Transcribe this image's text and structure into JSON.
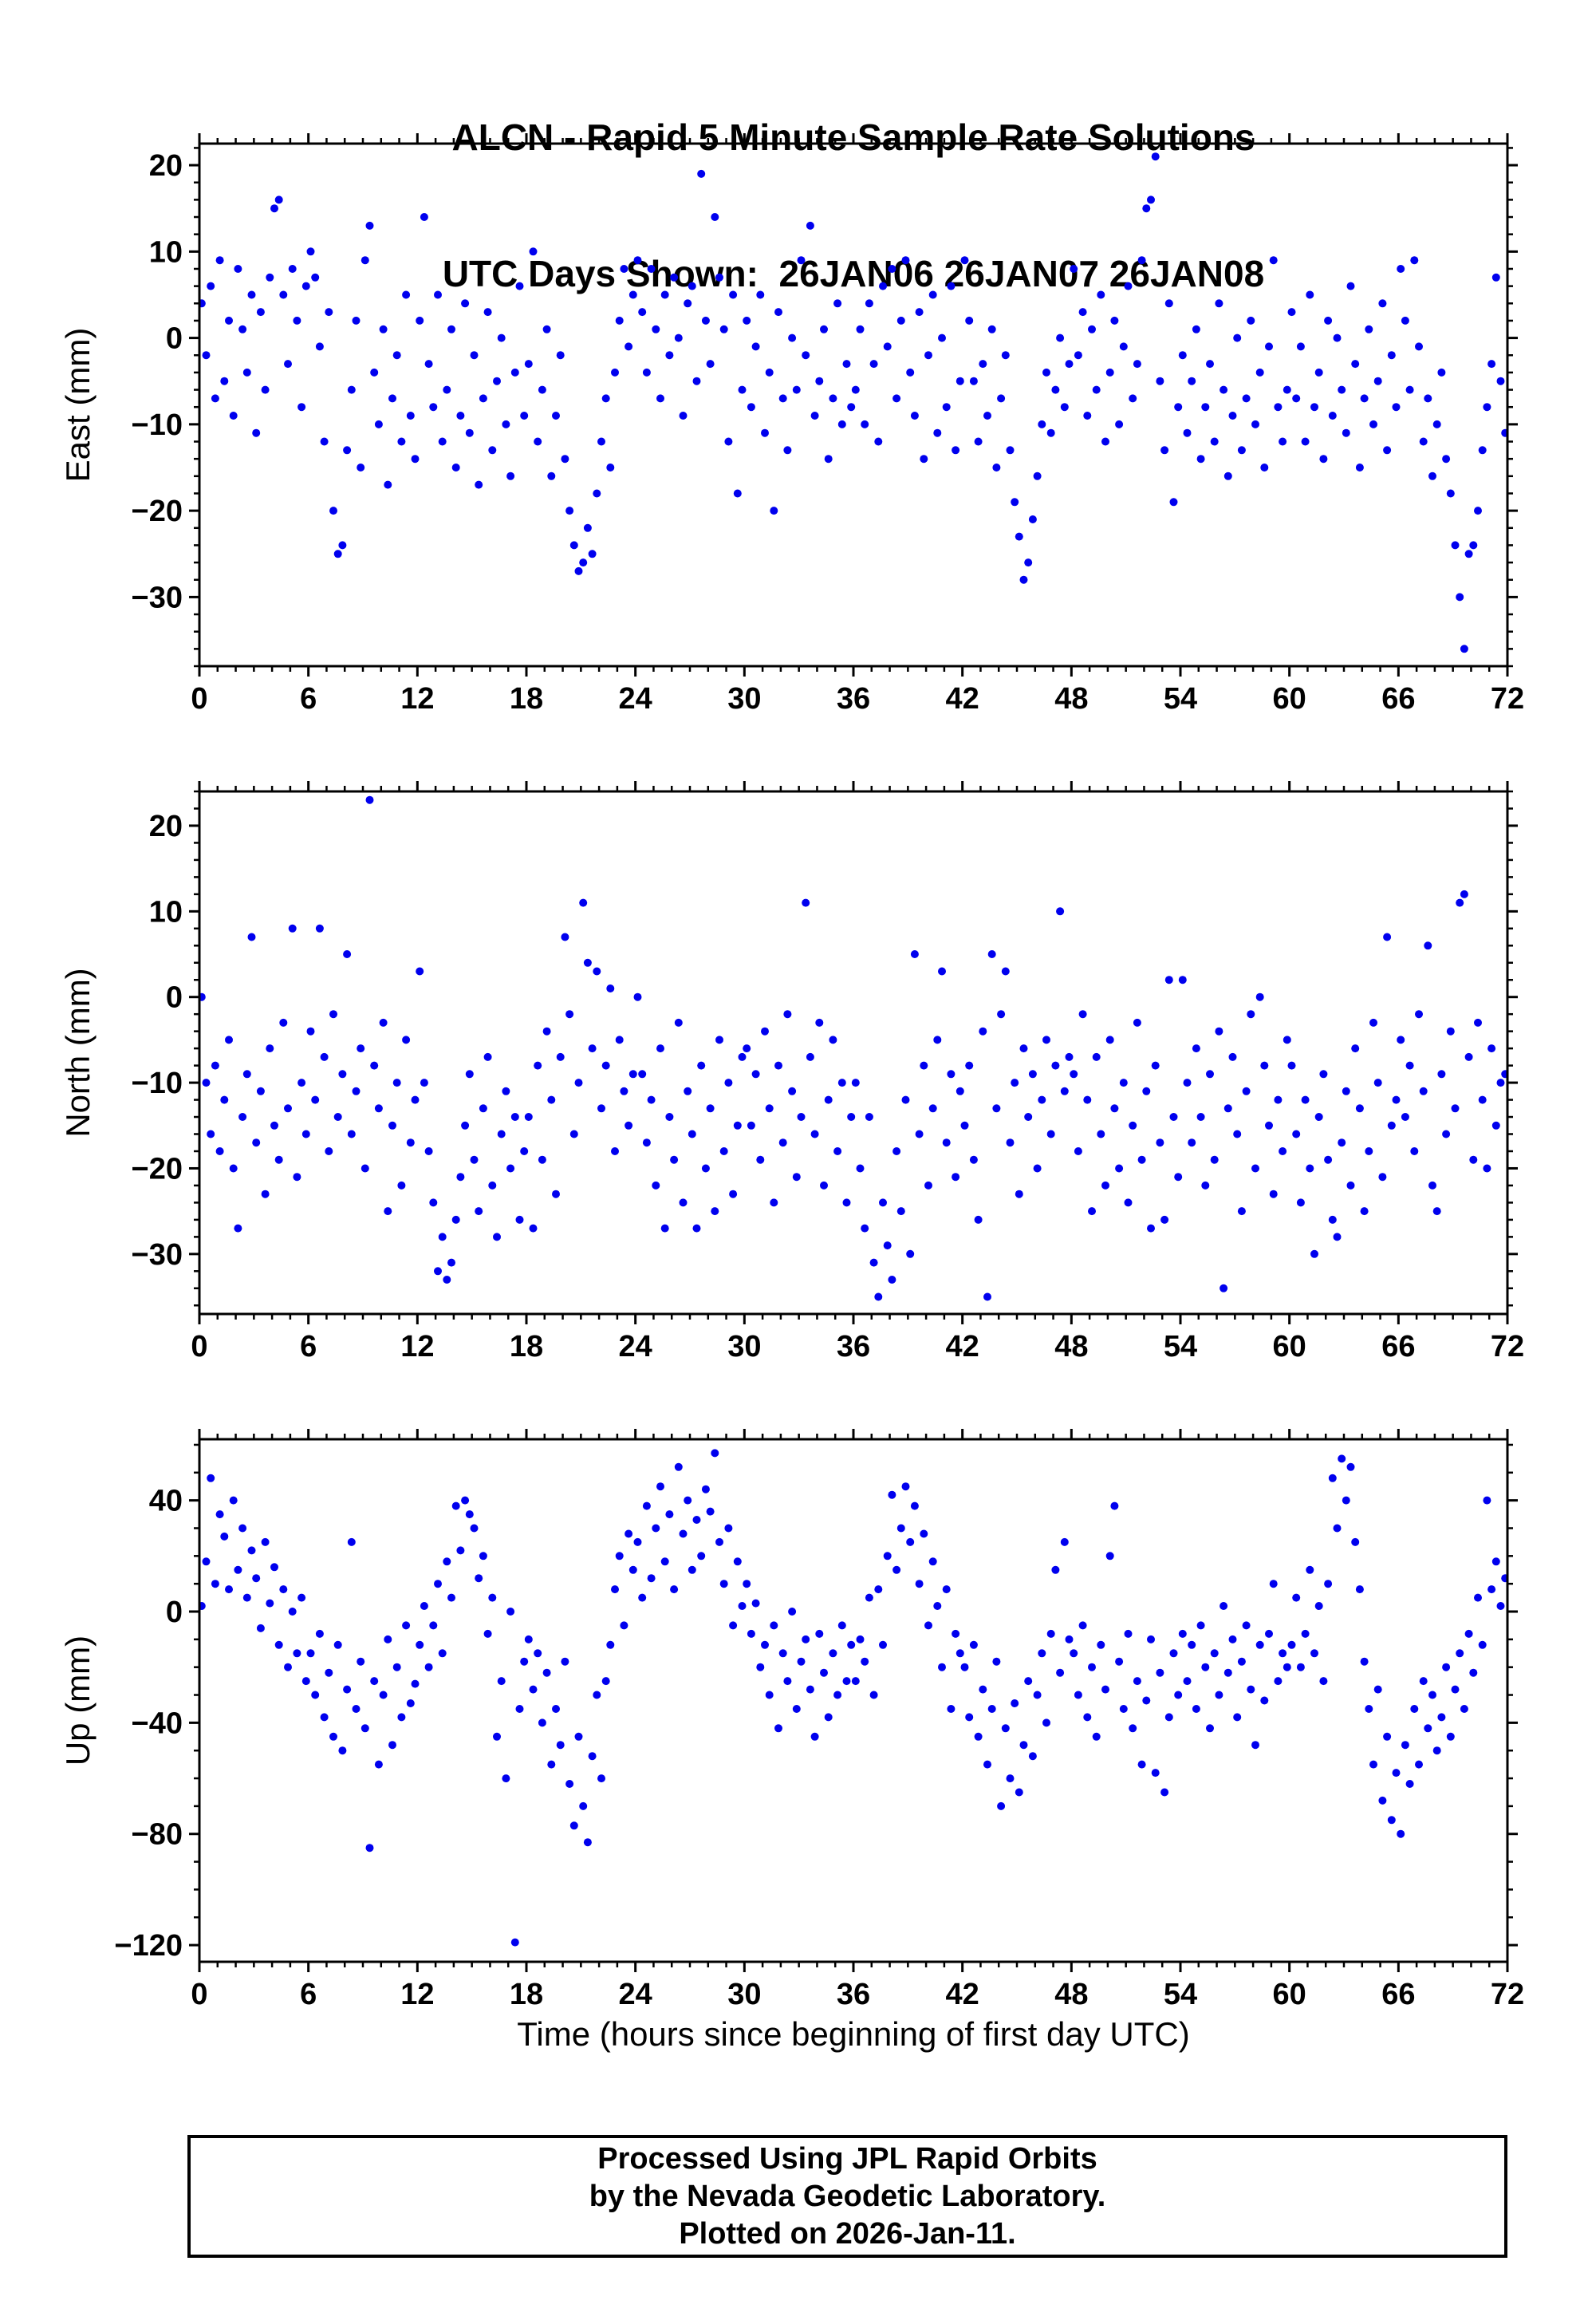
{
  "title": {
    "line1": "ALCN - Rapid 5 Minute Sample Rate Solutions",
    "line2": "UTC Days Shown:  26JAN06 26JAN07 26JAN08"
  },
  "x_axis_title": "Time (hours since beginning of first day UTC)",
  "footer": {
    "line1": "Processed Using JPL Rapid Orbits",
    "line2": "by the Nevada Geodetic Laboratory.",
    "line3": "Plotted on 2026-Jan-11."
  },
  "style": {
    "point_color": "#0000ee",
    "frame_color": "#000000",
    "background": "#ffffff"
  },
  "chart_data": [
    {
      "type": "scatter",
      "name": "east",
      "ylabel": "East (mm)",
      "ylim": [
        -38,
        22.5
      ],
      "yticks": [
        -30,
        -20,
        -10,
        0,
        10,
        20
      ],
      "y_minor_step": 2,
      "xlim": [
        0,
        72
      ],
      "xticks": [
        0,
        6,
        12,
        18,
        24,
        30,
        36,
        42,
        48,
        54,
        60,
        66,
        72
      ],
      "x_minor_step": 1,
      "x_start": 0.125,
      "x_step": 0.25,
      "y": [
        4,
        -2,
        6,
        -7,
        9,
        -5,
        2,
        -9,
        8,
        1,
        -4,
        5,
        -11,
        3,
        -6,
        7,
        15,
        16,
        5,
        -3,
        8,
        2,
        -8,
        6,
        10,
        7,
        -1,
        -12,
        3,
        -20,
        -25,
        -24,
        -13,
        -6,
        2,
        -15,
        9,
        13,
        -4,
        -10,
        1,
        -17,
        -7,
        -2,
        -12,
        5,
        -9,
        -14,
        2,
        14,
        -3,
        -8,
        5,
        -12,
        -6,
        1,
        -15,
        -9,
        4,
        -11,
        -2,
        -17,
        -7,
        3,
        -13,
        -5,
        0,
        -10,
        -16,
        -4,
        6,
        -9,
        -3,
        10,
        -12,
        -6,
        1,
        -16,
        -9,
        -2,
        -14,
        -20,
        -24,
        -27,
        -26,
        -22,
        -25,
        -18,
        -12,
        -7,
        -15,
        -4,
        2,
        8,
        -1,
        5,
        9,
        3,
        -4,
        8,
        1,
        -7,
        5,
        -2,
        7,
        0,
        -9,
        4,
        6,
        -5,
        19,
        2,
        -3,
        14,
        7,
        1,
        -12,
        5,
        -18,
        -6,
        2,
        -8,
        -1,
        5,
        -11,
        -4,
        -20,
        3,
        -7,
        -13,
        0,
        -6,
        9,
        -2,
        13,
        -9,
        -5,
        1,
        -14,
        -7,
        4,
        -10,
        -3,
        -8,
        -6,
        1,
        -10,
        4,
        -3,
        -12,
        6,
        -1,
        8,
        -7,
        2,
        9,
        -4,
        -9,
        3,
        -14,
        -2,
        5,
        -11,
        0,
        -8,
        6,
        -13,
        -5,
        9,
        2,
        -5,
        -12,
        -3,
        -9,
        1,
        -15,
        -7,
        -2,
        -13,
        -19,
        -23,
        -28,
        -26,
        -21,
        -16,
        -10,
        -4,
        -11,
        -6,
        0,
        -8,
        -3,
        8,
        -2,
        3,
        -9,
        1,
        -6,
        5,
        -12,
        -4,
        2,
        -10,
        -1,
        6,
        -7,
        -3,
        9,
        15,
        16,
        21,
        -5,
        -13,
        4,
        -19,
        -8,
        -2,
        -11,
        -5,
        1,
        -14,
        -8,
        -3,
        -12,
        4,
        -6,
        -16,
        -9,
        0,
        -13,
        -7,
        2,
        -10,
        -4,
        -15,
        -1,
        9,
        -8,
        -12,
        -6,
        3,
        -7,
        -1,
        -12,
        5,
        -8,
        -4,
        -14,
        2,
        -9,
        0,
        -6,
        -11,
        6,
        -3,
        -15,
        -7,
        1,
        -10,
        -5,
        4,
        -13,
        -2,
        -8,
        8,
        2,
        -6,
        9,
        -1,
        -12,
        -7,
        -16,
        -10,
        -4,
        -14,
        -18,
        -24,
        -30,
        -36,
        -25,
        -24,
        -20,
        -13,
        -8,
        -3,
        7,
        -5,
        -11
      ]
    },
    {
      "type": "scatter",
      "name": "north",
      "ylabel": "North (mm)",
      "ylim": [
        -37,
        24
      ],
      "yticks": [
        -30,
        -20,
        -10,
        0,
        10,
        20
      ],
      "y_minor_step": 2,
      "xlim": [
        0,
        72
      ],
      "xticks": [
        0,
        6,
        12,
        18,
        24,
        30,
        36,
        42,
        48,
        54,
        60,
        66,
        72
      ],
      "x_minor_step": 1,
      "x_start": 0.125,
      "x_step": 0.25,
      "y": [
        0,
        -10,
        -16,
        -8,
        -18,
        -12,
        -5,
        -20,
        -27,
        -14,
        -9,
        7,
        -17,
        -11,
        -23,
        -6,
        -15,
        -19,
        -3,
        -13,
        8,
        -21,
        -10,
        -16,
        -4,
        -12,
        8,
        -7,
        -18,
        -2,
        -14,
        -9,
        5,
        -16,
        -11,
        -6,
        -20,
        23,
        -8,
        -13,
        -3,
        -25,
        -15,
        -10,
        -22,
        -5,
        -17,
        -12,
        3,
        -10,
        -18,
        -24,
        -32,
        -28,
        -33,
        -31,
        -26,
        -21,
        -15,
        -9,
        -19,
        -25,
        -13,
        -7,
        -22,
        -28,
        -16,
        -11,
        -20,
        -14,
        -26,
        -18,
        -14,
        -27,
        -8,
        -19,
        -4,
        -12,
        -23,
        -7,
        7,
        -2,
        -16,
        -10,
        11,
        4,
        -6,
        3,
        -13,
        -8,
        1,
        -18,
        -5,
        -11,
        -15,
        -9,
        0,
        -9,
        -17,
        -12,
        -22,
        -6,
        -27,
        -14,
        -19,
        -3,
        -24,
        -11,
        -16,
        -27,
        -8,
        -20,
        -13,
        -25,
        -5,
        -18,
        -10,
        -23,
        -15,
        -7,
        -6,
        -15,
        -9,
        -19,
        -4,
        -13,
        -24,
        -8,
        -17,
        -2,
        -11,
        -21,
        -14,
        11,
        -7,
        -16,
        -3,
        -22,
        -12,
        -5,
        -18,
        -10,
        -24,
        -14,
        -10,
        -20,
        -27,
        -14,
        -31,
        -35,
        -24,
        -29,
        -33,
        -18,
        -25,
        -12,
        -30,
        5,
        -16,
        -8,
        -22,
        -13,
        -5,
        3,
        -17,
        -9,
        -21,
        -11,
        -15,
        -8,
        -19,
        -26,
        -4,
        -35,
        5,
        -13,
        -2,
        3,
        -17,
        -10,
        -23,
        -6,
        -14,
        -9,
        -20,
        -12,
        -5,
        -16,
        -8,
        10,
        -11,
        -7,
        -9,
        -18,
        -2,
        -12,
        -25,
        -7,
        -16,
        -22,
        -5,
        -13,
        -20,
        -10,
        -24,
        -15,
        -3,
        -19,
        -11,
        -27,
        -8,
        -17,
        -26,
        2,
        -14,
        -21,
        2,
        -10,
        -17,
        -6,
        -14,
        -22,
        -9,
        -19,
        -4,
        -34,
        -13,
        -7,
        -16,
        -25,
        -11,
        -2,
        -20,
        0,
        -8,
        -15,
        -23,
        -12,
        -18,
        -5,
        -8,
        -16,
        -24,
        -12,
        -20,
        -30,
        -14,
        -9,
        -19,
        -26,
        -28,
        -17,
        -11,
        -22,
        -6,
        -13,
        -25,
        -18,
        -3,
        -10,
        -21,
        7,
        -15,
        -12,
        -5,
        -14,
        -8,
        -18,
        -2,
        -11,
        6,
        -22,
        -25,
        -9,
        -16,
        -4,
        -13,
        11,
        12,
        -7,
        -19,
        -3,
        -12,
        -20,
        -6,
        -15,
        -10,
        -9
      ]
    },
    {
      "type": "scatter",
      "name": "up",
      "ylabel": "Up (mm)",
      "ylim": [
        -126,
        62
      ],
      "yticks": [
        -120,
        -80,
        -40,
        0,
        40
      ],
      "y_minor_step": 10,
      "xlim": [
        0,
        72
      ],
      "xticks": [
        0,
        6,
        12,
        18,
        24,
        30,
        36,
        42,
        48,
        54,
        60,
        66,
        72
      ],
      "x_minor_step": 1,
      "x_start": 0.125,
      "x_step": 0.25,
      "y": [
        2,
        18,
        48,
        10,
        35,
        27,
        8,
        40,
        15,
        30,
        5,
        22,
        12,
        -6,
        25,
        3,
        16,
        -12,
        8,
        -20,
        0,
        -15,
        5,
        -25,
        -15,
        -30,
        -8,
        -38,
        -22,
        -45,
        -12,
        -50,
        -28,
        25,
        -35,
        -18,
        -42,
        -85,
        -25,
        -55,
        -30,
        -10,
        -48,
        -20,
        -38,
        -5,
        -33,
        -26,
        -12,
        2,
        -20,
        -5,
        10,
        -15,
        18,
        5,
        38,
        22,
        40,
        35,
        30,
        12,
        20,
        -8,
        5,
        -45,
        -25,
        -60,
        0,
        -119,
        -35,
        -18,
        -10,
        -28,
        -15,
        -40,
        -22,
        -55,
        -35,
        -48,
        -18,
        -62,
        -77,
        -45,
        -70,
        -83,
        -52,
        -30,
        -60,
        -25,
        -12,
        8,
        20,
        -5,
        28,
        15,
        25,
        5,
        38,
        12,
        30,
        45,
        18,
        35,
        8,
        52,
        28,
        40,
        15,
        33,
        20,
        44,
        36,
        57,
        25,
        10,
        30,
        -5,
        18,
        2,
        10,
        -8,
        3,
        -20,
        -12,
        -30,
        -5,
        -42,
        -15,
        -25,
        0,
        -35,
        -18,
        -10,
        -28,
        -45,
        -8,
        -22,
        -38,
        -15,
        -30,
        -5,
        -25,
        -12,
        -25,
        -10,
        -18,
        5,
        -30,
        8,
        -12,
        20,
        42,
        15,
        30,
        45,
        25,
        38,
        10,
        28,
        -5,
        18,
        2,
        -20,
        8,
        -35,
        -8,
        -15,
        -20,
        -38,
        -12,
        -45,
        -28,
        -55,
        -35,
        -18,
        -70,
        -42,
        -60,
        -33,
        -65,
        -48,
        -25,
        -52,
        -30,
        -15,
        -40,
        -8,
        15,
        -22,
        25,
        -10,
        -15,
        -30,
        -5,
        -38,
        -20,
        -45,
        -12,
        -28,
        20,
        38,
        -18,
        -35,
        -8,
        -42,
        -25,
        -55,
        -32,
        -10,
        -58,
        -22,
        -65,
        -38,
        -15,
        -30,
        -8,
        -25,
        -12,
        -35,
        -5,
        -20,
        -42,
        -15,
        -30,
        2,
        -22,
        -10,
        -38,
        -18,
        -5,
        -28,
        -48,
        -12,
        -32,
        -8,
        10,
        -25,
        -15,
        -20,
        -12,
        5,
        -20,
        -8,
        15,
        -15,
        2,
        -25,
        10,
        48,
        30,
        55,
        40,
        52,
        25,
        8,
        -18,
        -35,
        -55,
        -28,
        -68,
        -45,
        -75,
        -58,
        -80,
        -48,
        -62,
        -35,
        -55,
        -25,
        -42,
        -30,
        -50,
        -38,
        -20,
        -45,
        -28,
        -15,
        -35,
        -8,
        -22,
        5,
        -12,
        40,
        8,
        18,
        2,
        12
      ]
    }
  ]
}
